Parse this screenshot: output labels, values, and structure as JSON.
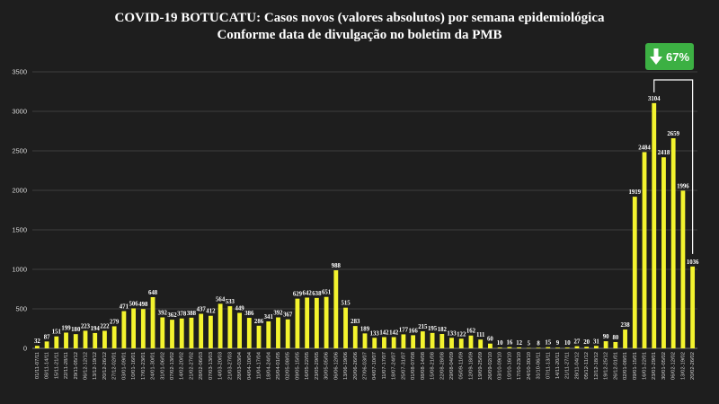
{
  "chart_data": {
    "type": "bar",
    "title": "COVID-19 BOTUCATU: Casos novos (valores absolutos) por semana epidemiológica",
    "subtitle": "Conforme data de divulgação no boletim da PMB",
    "xlabel": "",
    "ylabel": "",
    "ylim": [
      0,
      3500
    ],
    "yticks": [
      0,
      500,
      1000,
      1500,
      2000,
      2500,
      3000,
      3500
    ],
    "grid": true,
    "bar_color": "#f3f32e",
    "categories": [
      "01/11-07/11",
      "08/11-14/11",
      "15/11-21/11",
      "22/11-28/11",
      "29/11-05/12",
      "06/12-12/12",
      "13/12-19/12",
      "20/12-26/12",
      "27/12-02/01",
      "03/01-09/01",
      "10/01-16/01",
      "17/01-23/01",
      "24/01-30/01",
      "31/01-06/02",
      "07/02-13/02",
      "14/02-20/02",
      "21/02-27/02",
      "28/02-06/03",
      "07/03-13/03",
      "14/03-20/03",
      "21/03-27/03",
      "28/03-03/04",
      "04/04-10/04",
      "11/04-17/04",
      "18/04-24/04",
      "25/04-01/05",
      "02/05-08/05",
      "09/05-15/05",
      "16/05-22/05",
      "23/05-29/05",
      "30/05-05/06",
      "06/06-12/06",
      "13/06-19/06",
      "20/06-26/06",
      "27/06-03/07",
      "04/07-10/07",
      "11/07-17/07",
      "18/07-24/07",
      "25/07-31/07",
      "01/08-07/08",
      "08/08-14/08",
      "15/08-21/08",
      "22/08-28/08",
      "29/08-04/09",
      "05/09-11/09",
      "12/09-18/09",
      "19/09-25/09",
      "26/09-02/10",
      "03/10-09/10",
      "10/10-16/10",
      "17/10-23/10",
      "24/10-30/10",
      "31/10-06/11",
      "07/11-13/11",
      "14/11-20/11",
      "21/11-27/11",
      "28/11-04/12",
      "05/12-11/12",
      "12/12-18/12",
      "19/12-25/12",
      "26/12-01/01",
      "02/01-08/01",
      "09/01-15/01",
      "16/01-22/01",
      "23/01-29/01",
      "30/01-05/02",
      "06/02-12/02",
      "13/02-19/02",
      "20/02-26/02"
    ],
    "values": [
      32,
      87,
      151,
      199,
      180,
      223,
      194,
      222,
      279,
      471,
      506,
      498,
      648,
      392,
      362,
      378,
      388,
      437,
      412,
      564,
      533,
      449,
      386,
      286,
      341,
      392,
      367,
      629,
      642,
      638,
      651,
      988,
      515,
      283,
      189,
      133,
      142,
      142,
      177,
      166,
      215,
      195,
      182,
      133,
      122,
      162,
      111,
      60,
      10,
      16,
      12,
      5,
      8,
      15,
      9,
      10,
      27,
      20,
      31,
      90,
      80,
      238,
      1919,
      2484,
      3104,
      2418,
      2659,
      1996,
      1036
    ],
    "data_labels": [
      "32",
      "87",
      "151",
      "199",
      "180",
      "223",
      "194",
      "222",
      "279",
      "471",
      "506",
      "498",
      "648",
      "392",
      "362",
      "378",
      "388",
      "437",
      "412",
      "564",
      "533",
      "449",
      "386",
      "286",
      "341",
      "392",
      "367",
      "629",
      "642",
      "638",
      "651",
      "988",
      "515",
      "283",
      "189",
      "133",
      "142",
      "142",
      "177",
      "166",
      "215",
      "195",
      "182",
      "133",
      "122",
      "162",
      "111",
      "60",
      "10",
      "16",
      "12",
      "5",
      "8",
      "15",
      "9",
      "10",
      "27",
      "20",
      "31",
      "90",
      "80",
      "238",
      "1919",
      "2484",
      "3104",
      "2418",
      "2659",
      "1996",
      "1036"
    ],
    "annotation": {
      "text": "67%",
      "icon": "arrow-down-icon",
      "color": "#3cb043",
      "from_index": 64,
      "to_index": 68
    }
  }
}
